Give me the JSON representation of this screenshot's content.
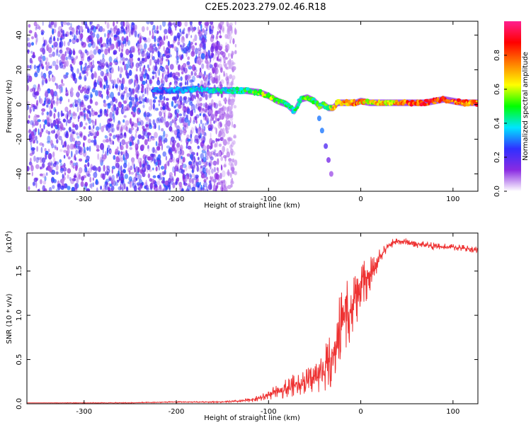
{
  "figure": {
    "title": "C2E5.2023.279.02.46.R18"
  },
  "chart_data": [
    {
      "type": "heatmap",
      "title": "C2E5.2023.279.02.46.R18",
      "xlabel": "Height of straight line (km)",
      "ylabel": "Frequency (Hz)",
      "xlim": [
        -362,
        127
      ],
      "ylim": [
        -50,
        48
      ],
      "xticks": [
        -300,
        -200,
        -100,
        0,
        100
      ],
      "xtick_labels": [
        "-300",
        "-200",
        "-100",
        "0",
        "100"
      ],
      "yticks": [
        -40,
        -20,
        0,
        20,
        40
      ],
      "ytick_labels": [
        "-40",
        "-20",
        "0",
        "20",
        "40"
      ],
      "grid": false,
      "colorbar": {
        "label": "Normalized spectral amplitude",
        "range": [
          0.0,
          1.0
        ],
        "ticks": [
          0.0,
          0.2,
          0.4,
          0.6,
          0.8
        ],
        "tick_labels": [
          "0.0",
          "0.2",
          "0.4",
          "0.6",
          "0.8"
        ],
        "colormap": [
          "#ffffff",
          "#8a2be2",
          "#3030ff",
          "#00e5ff",
          "#00ff00",
          "#ffff00",
          "#ff8000",
          "#ff0000",
          "#ff1f8f"
        ]
      },
      "noise_region": {
        "x_range": [
          -362,
          -140
        ],
        "y_range": [
          -50,
          48
        ],
        "typical_amplitude": 0.1
      },
      "ridge": {
        "x": [
          -225,
          -200,
          -180,
          -160,
          -140,
          -125,
          -110,
          -100,
          -90,
          -80,
          -72,
          -65,
          -58,
          -50,
          -45,
          -40,
          -35,
          -30,
          -25,
          -20,
          -15,
          -10,
          -5,
          0,
          10,
          20,
          30,
          50,
          70,
          90,
          110,
          127
        ],
        "freq": [
          8,
          8,
          9,
          8,
          8,
          8,
          7,
          5,
          2,
          0,
          -4,
          3,
          4,
          2,
          -1,
          0,
          -2,
          -2,
          1,
          1,
          1,
          1,
          1,
          2,
          1,
          1,
          1,
          1,
          1,
          3,
          1,
          1
        ],
        "amplitude": [
          0.3,
          0.35,
          0.4,
          0.4,
          0.45,
          0.5,
          0.6,
          0.6,
          0.55,
          0.5,
          0.45,
          0.5,
          0.55,
          0.5,
          0.55,
          0.5,
          0.55,
          0.7,
          0.75,
          0.8,
          0.8,
          0.85,
          0.8,
          0.75,
          0.7,
          0.7,
          0.7,
          0.85,
          0.9,
          0.9,
          0.85,
          0.85
        ]
      },
      "secondary_branch": {
        "x": [
          -45,
          -42,
          -38,
          -35,
          -32
        ],
        "freq": [
          -8,
          -15,
          -24,
          -32,
          -40
        ],
        "amplitude": [
          0.3,
          0.3,
          0.2,
          0.15,
          0.1
        ]
      }
    },
    {
      "type": "line",
      "xlabel": "Height of straight line (km)",
      "ylabel": "SNR (10 * v/v)",
      "y_multiplier_label": "(x10",
      "y_multiplier_exponent": "4",
      "xlim": [
        -362,
        127
      ],
      "ylim": [
        0.0,
        1.93
      ],
      "xticks": [
        -300,
        -200,
        -100,
        0,
        100
      ],
      "xtick_labels": [
        "-300",
        "-200",
        "-100",
        "0",
        "100"
      ],
      "yticks": [
        0.0,
        0.5,
        1.0,
        1.5
      ],
      "ytick_labels": [
        "0.0",
        "0.5",
        "1.0",
        "1.5"
      ],
      "grid": false,
      "series": [
        {
          "color": "#ee3333",
          "x": [
            -362,
            -300,
            -250,
            -200,
            -150,
            -130,
            -115,
            -105,
            -95,
            -85,
            -75,
            -65,
            -55,
            -45,
            -40,
            -35,
            -30,
            -25,
            -20,
            -15,
            -10,
            -5,
            0,
            5,
            10,
            15,
            20,
            25,
            30,
            35,
            40,
            50,
            60,
            70,
            80,
            90,
            100,
            110,
            120,
            127
          ],
          "y": [
            0.01,
            0.01,
            0.01,
            0.02,
            0.02,
            0.03,
            0.05,
            0.08,
            0.12,
            0.16,
            0.2,
            0.24,
            0.27,
            0.32,
            0.38,
            0.45,
            0.55,
            0.72,
            0.95,
            1.15,
            1.05,
            1.2,
            1.3,
            1.38,
            1.45,
            1.55,
            1.65,
            1.72,
            1.78,
            1.82,
            1.84,
            1.83,
            1.8,
            1.8,
            1.78,
            1.77,
            1.77,
            1.76,
            1.75,
            1.74
          ],
          "jitter": [
            0.0,
            0.005,
            0.005,
            0.006,
            0.008,
            0.015,
            0.03,
            0.05,
            0.07,
            0.1,
            0.12,
            0.14,
            0.15,
            0.2,
            0.25,
            0.3,
            0.35,
            0.4,
            0.45,
            0.5,
            0.35,
            0.35,
            0.3,
            0.25,
            0.2,
            0.15,
            0.1,
            0.08,
            0.06,
            0.05,
            0.04,
            0.04,
            0.04,
            0.04,
            0.04,
            0.04,
            0.04,
            0.04,
            0.04,
            0.04
          ]
        }
      ]
    }
  ]
}
